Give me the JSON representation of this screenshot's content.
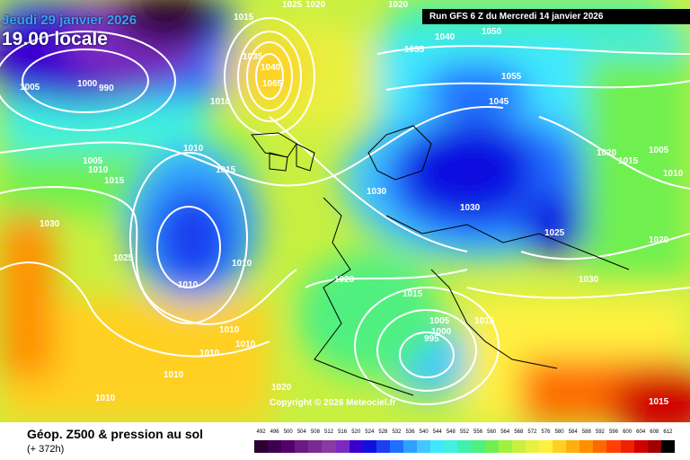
{
  "header": {
    "date": "Jeudi 29 janvier 2026",
    "time": "19.00 locale",
    "run": "Run GFS 6 Z du Mercredi 14 janvier 2026"
  },
  "copyright": "Copyright © 2026 Meteociel.fr",
  "legend": {
    "title": "Géop. Z500 & pression au sol",
    "lead": "(+ 372h)",
    "scale": [
      {
        "v": "492",
        "c": "#2a0030"
      },
      {
        "v": "496",
        "c": "#3d0050"
      },
      {
        "v": "500",
        "c": "#55006a"
      },
      {
        "v": "504",
        "c": "#6a1a80"
      },
      {
        "v": "508",
        "c": "#7a2a90"
      },
      {
        "v": "512",
        "c": "#8a3aa0"
      },
      {
        "v": "516",
        "c": "#7a2ac0"
      },
      {
        "v": "520",
        "c": "#3a00d0"
      },
      {
        "v": "524",
        "c": "#1010e0"
      },
      {
        "v": "528",
        "c": "#1a40f0"
      },
      {
        "v": "532",
        "c": "#2070ff"
      },
      {
        "v": "536",
        "c": "#30a0ff"
      },
      {
        "v": "540",
        "c": "#40c8ff"
      },
      {
        "v": "544",
        "c": "#40e8ff"
      },
      {
        "v": "548",
        "c": "#40f0e0"
      },
      {
        "v": "552",
        "c": "#40f0b0"
      },
      {
        "v": "556",
        "c": "#50f080"
      },
      {
        "v": "560",
        "c": "#70f050"
      },
      {
        "v": "564",
        "c": "#a0f040"
      },
      {
        "v": "568",
        "c": "#c8f040"
      },
      {
        "v": "572",
        "c": "#e8f040"
      },
      {
        "v": "576",
        "c": "#fff040"
      },
      {
        "v": "580",
        "c": "#ffd020"
      },
      {
        "v": "584",
        "c": "#ffb010"
      },
      {
        "v": "588",
        "c": "#ff9000"
      },
      {
        "v": "592",
        "c": "#ff6a00"
      },
      {
        "v": "596",
        "c": "#ff4000"
      },
      {
        "v": "600",
        "c": "#f02000"
      },
      {
        "v": "604",
        "c": "#d00000"
      },
      {
        "v": "608",
        "c": "#a00000"
      },
      {
        "v": "612",
        "c": "#000000"
      }
    ]
  },
  "isobar_labels": [
    {
      "t": "1015"
    },
    {
      "t": "1020"
    },
    {
      "t": "1025"
    },
    {
      "t": "1020"
    },
    {
      "t": "1040"
    },
    {
      "t": "1050"
    },
    {
      "t": "1035"
    },
    {
      "t": "1055"
    },
    {
      "t": "1045"
    },
    {
      "t": "1005"
    },
    {
      "t": "1000"
    },
    {
      "t": "990"
    },
    {
      "t": "1035"
    },
    {
      "t": "1040"
    },
    {
      "t": "1065"
    },
    {
      "t": "1010"
    },
    {
      "t": "1005"
    },
    {
      "t": "1010"
    },
    {
      "t": "1015"
    },
    {
      "t": "1010"
    },
    {
      "t": "1015"
    },
    {
      "t": "1030"
    },
    {
      "t": "1030"
    },
    {
      "t": "1030"
    },
    {
      "t": "1025"
    },
    {
      "t": "1025"
    },
    {
      "t": "1020"
    },
    {
      "t": "1015"
    },
    {
      "t": "1005"
    },
    {
      "t": "1010"
    },
    {
      "t": "1020"
    },
    {
      "t": "1010"
    },
    {
      "t": "1010"
    },
    {
      "t": "1015"
    },
    {
      "t": "1005"
    },
    {
      "t": "1000"
    },
    {
      "t": "995"
    },
    {
      "t": "1015"
    },
    {
      "t": "1030"
    },
    {
      "t": "1020"
    },
    {
      "t": "1010"
    },
    {
      "t": "1010"
    },
    {
      "t": "1010"
    },
    {
      "t": "1010"
    },
    {
      "t": "1010"
    },
    {
      "t": "1020"
    },
    {
      "t": "1015"
    }
  ]
}
